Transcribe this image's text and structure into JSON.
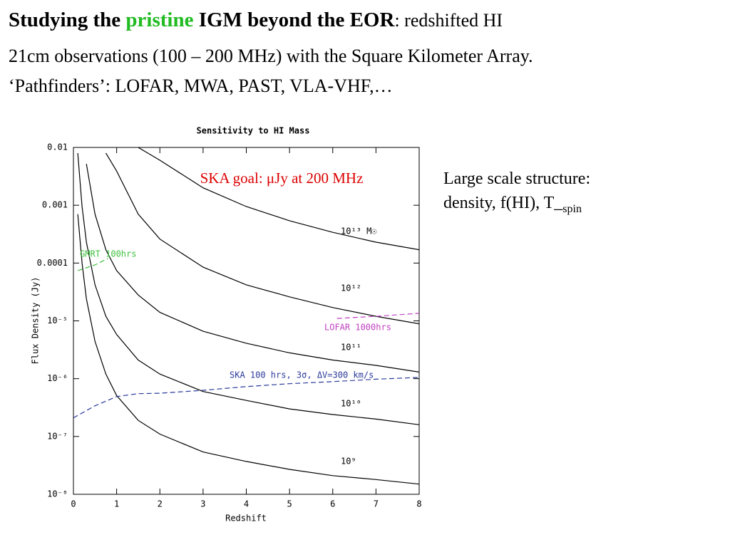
{
  "header": {
    "line1": [
      "Studying the ",
      "pristine",
      " IGM beyond the EOR",
      ": redshifted  HI"
    ],
    "line2": "21cm observations (100 – 200 MHz) with the Square Kilometer Array.",
    "line3": "‘Pathfinders’: LOFAR, MWA, PAST, VLA-VHF,…"
  },
  "side_note": {
    "line1": "Large scale structure:",
    "line2": "density, f(HI), T_",
    "subscript": "spin"
  },
  "chart_data": {
    "type": "line",
    "title": "Sensitivity to HI Mass",
    "x_label": "Redshift",
    "y_label": "Flux Density (Jy)",
    "annotation": "SKA goal:   μJy at 200 MHz",
    "xlim": [
      0,
      8
    ],
    "xticks": [
      0,
      1,
      2,
      3,
      4,
      5,
      6,
      7,
      8
    ],
    "ylim": [
      1e-08,
      0.01
    ],
    "y_log": true,
    "yticks": [
      0.01,
      0.001,
      0.0001,
      {
        "value": 1e-05,
        "label": "10⁻⁵"
      },
      {
        "value": 1e-06,
        "label": "10⁻⁶"
      },
      {
        "value": 1e-07,
        "label": "10⁻⁷"
      },
      {
        "value": 1e-08,
        "label": "10⁻⁸"
      }
    ],
    "series": [
      {
        "name": "10¹³ M☉",
        "color": "#000000",
        "dashed": false,
        "x": [
          0.1,
          0.2,
          0.3,
          0.5,
          0.75,
          1,
          1.5,
          2,
          3,
          4,
          5,
          6,
          7,
          8
        ],
        "values": [
          null,
          null,
          null,
          null,
          null,
          null,
          0.01,
          0.006,
          0.002,
          0.00095,
          0.00054,
          0.00034,
          0.00023,
          0.00017
        ]
      },
      {
        "name": "10¹²",
        "color": "#000000",
        "dashed": false,
        "x": [
          0.1,
          0.2,
          0.3,
          0.5,
          0.75,
          1,
          1.5,
          2,
          3,
          4,
          5,
          6,
          7,
          8
        ],
        "values": [
          null,
          null,
          null,
          null,
          0.008,
          0.0039,
          0.0007,
          0.00026,
          8.5e-05,
          4.2e-05,
          2.6e-05,
          1.7e-05,
          1.2e-05,
          8.9e-06
        ]
      },
      {
        "name": "10¹¹",
        "color": "#000000",
        "dashed": false,
        "x": [
          0.1,
          0.2,
          0.3,
          0.5,
          0.75,
          1,
          1.5,
          2,
          3,
          4,
          5,
          6,
          7,
          8
        ],
        "values": [
          null,
          null,
          0.0052,
          0.0007,
          0.00017,
          7.4e-05,
          2.8e-05,
          1.4e-05,
          6.6e-06,
          4.1e-06,
          2.8e-06,
          2.1e-06,
          1.7e-06,
          1.3e-06
        ]
      },
      {
        "name": "10¹⁰",
        "color": "#000000",
        "dashed": false,
        "x": [
          0.1,
          0.2,
          0.3,
          0.5,
          0.75,
          1,
          1.5,
          2,
          3,
          4,
          5,
          6,
          7,
          8
        ],
        "values": [
          0.008,
          0.00095,
          0.00023,
          4.2e-05,
          1.2e-05,
          5.8e-06,
          2.1e-06,
          1.2e-06,
          6e-07,
          4.2e-07,
          3e-07,
          2.4e-07,
          2e-07,
          1.6e-07
        ]
      },
      {
        "name": "10⁹",
        "color": "#000000",
        "dashed": false,
        "x": [
          0.1,
          0.2,
          0.3,
          0.5,
          0.75,
          1,
          1.5,
          2,
          3,
          4,
          5,
          6,
          7,
          8
        ],
        "values": [
          0.0007,
          0.0001,
          2.4e-05,
          4.4e-06,
          1.2e-06,
          5.1e-07,
          1.9e-07,
          1.1e-07,
          5.4e-08,
          3.7e-08,
          2.7e-08,
          2.1e-08,
          1.8e-08,
          1.5e-08
        ]
      },
      {
        "name": "SKA 100 hrs, 3σ, ΔV=300 km/s",
        "color": "#2b3a9a",
        "dashed": true,
        "x": [
          0,
          0.5,
          1,
          1.5,
          2,
          3,
          4,
          5,
          6,
          7,
          8
        ],
        "values": [
          2.1e-07,
          3.4e-07,
          4.9e-07,
          5.5e-07,
          5.6e-07,
          6.3e-07,
          7.3e-07,
          8.2e-07,
          8.9e-07,
          9.8e-07,
          1.05e-06
        ]
      },
      {
        "name": "LOFAR 1000hrs",
        "color": "#c040c0",
        "dashed": true,
        "x": [
          6.1,
          7,
          8
        ],
        "values": [
          1.1e-05,
          1.2e-05,
          1.35e-05
        ]
      },
      {
        "name": "GMRT 100hrs",
        "color": "#40c040",
        "dashed": true,
        "x": [
          0.1,
          0.5,
          0.8
        ],
        "values": [
          7.4e-05,
          9.3e-05,
          0.00012
        ]
      }
    ]
  }
}
